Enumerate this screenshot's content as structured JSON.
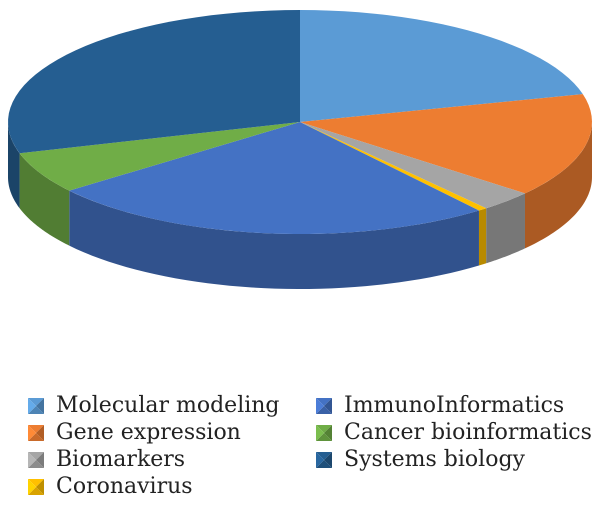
{
  "chart_data": {
    "type": "pie",
    "style": "3d",
    "title": "",
    "legend_placement": "bottom",
    "categories": [
      "Molecular modeling",
      "Gene expression",
      "Biomarkers",
      "Coronavirus",
      "ImmunoInformatics",
      "Cancer bioinformatics",
      "Systems biology"
    ],
    "values": [
      21,
      15,
      3,
      0.5,
      25,
      6,
      29.5
    ],
    "unit": "percent (estimated)",
    "colors": [
      "#5b9bd5",
      "#ed7d31",
      "#a5a5a5",
      "#ffc000",
      "#4472c4",
      "#70ad47",
      "#255e91"
    ]
  },
  "legend": {
    "items": [
      {
        "label": "Molecular modeling",
        "color": "#5b9bd5"
      },
      {
        "label": "ImmunoInformatics",
        "color": "#4472c4"
      },
      {
        "label": "Gene expression",
        "color": "#ed7d31"
      },
      {
        "label": "Cancer bioinformatics",
        "color": "#70ad47"
      },
      {
        "label": "Biomarkers",
        "color": "#a5a5a5"
      },
      {
        "label": "Systems biology",
        "color": "#255e91"
      },
      {
        "label": "Coronavirus",
        "color": "#ffc000"
      }
    ]
  }
}
